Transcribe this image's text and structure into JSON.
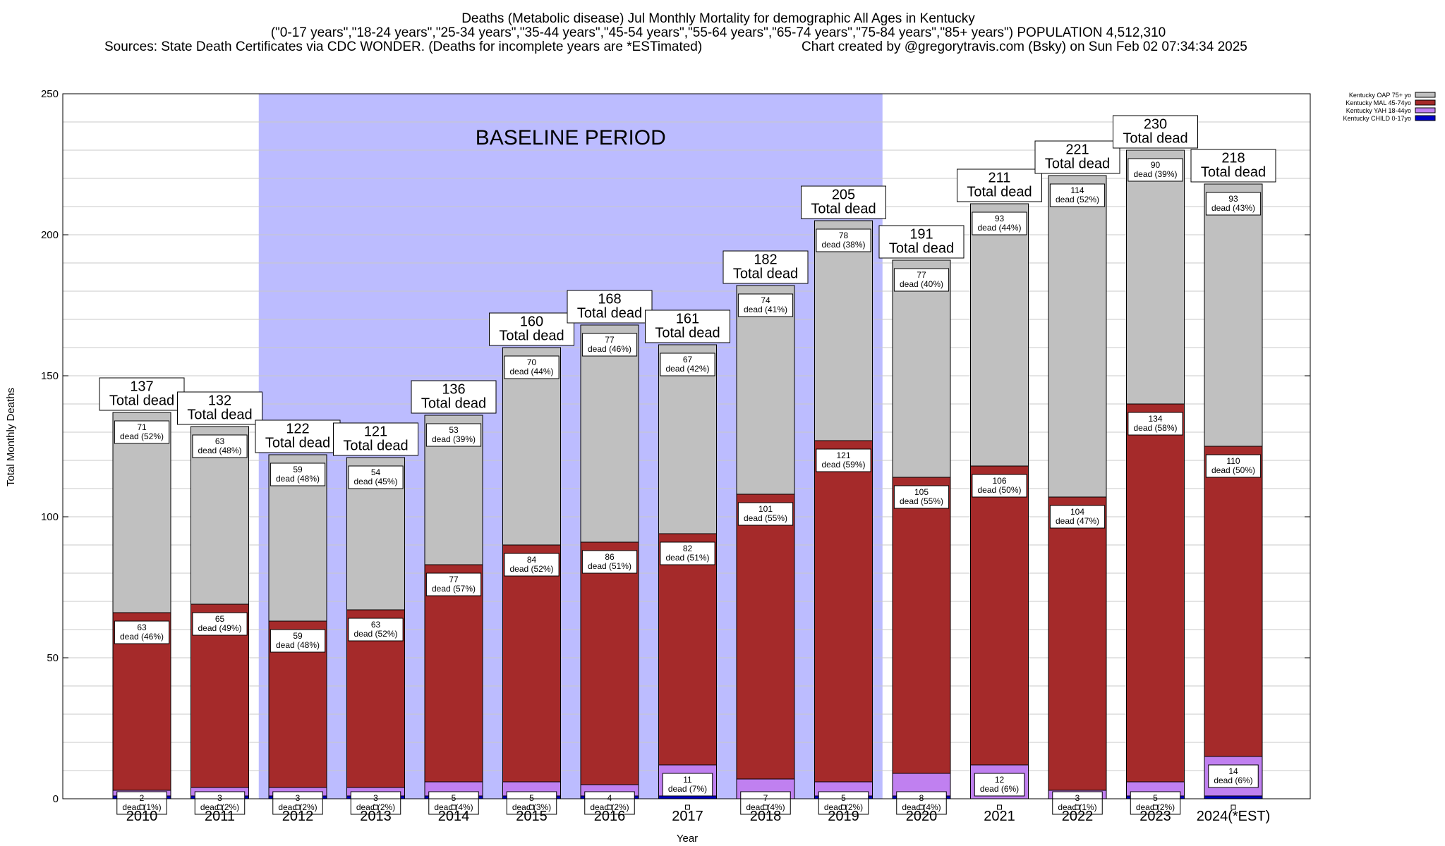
{
  "chart_data": {
    "type": "bar",
    "stacked": true,
    "title": "Deaths (Metabolic disease) Jul Monthly Mortality for demographic All Ages in Kentucky",
    "subtitle": "(\"0-17 years\",\"18-24 years\",\"25-34 years\",\"35-44 years\",\"45-54 years\",\"55-64 years\",\"65-74 years\",\"75-84 years\",\"85+ years\") POPULATION 4,512,310",
    "source_line": "Sources: State Death Certificates via CDC WONDER. (Deaths for incomplete years are *ESTimated)",
    "credit_line": "Chart created by @gregorytravis.com (Bsky) on Sun Feb 02 07:34:34 2025",
    "xlabel": "Year",
    "ylabel": "Total Monthly Deaths",
    "ylim": [
      0,
      250
    ],
    "yticks": [
      0,
      50,
      100,
      150,
      200,
      250
    ],
    "grid": true,
    "legend_position": "top-right",
    "categories": [
      "2010",
      "2011",
      "2012",
      "2013",
      "2014",
      "2015",
      "2016",
      "2017",
      "2018",
      "2019",
      "2020",
      "2021",
      "2022",
      "2023",
      "2024(*EST)"
    ],
    "series": [
      {
        "name": "Kentucky CHILD 0-17yo",
        "color": "#0000c8",
        "values": [
          1,
          1,
          1,
          1,
          1,
          1,
          1,
          1,
          0,
          1,
          1,
          0,
          0,
          1,
          1
        ]
      },
      {
        "name": "Kentucky YAH 18-44yo",
        "color": "#c080f0",
        "values": [
          2,
          3,
          3,
          3,
          5,
          5,
          4,
          11,
          7,
          5,
          8,
          12,
          3,
          5,
          14
        ]
      },
      {
        "name": "Kentucky MAL 45-74yo",
        "color": "#a52a2a",
        "values": [
          63,
          65,
          59,
          63,
          77,
          84,
          86,
          82,
          101,
          121,
          105,
          106,
          104,
          134,
          110
        ]
      },
      {
        "name": "Kentucky OAP 75+ yo",
        "color": "#c0c0c0",
        "values": [
          71,
          63,
          59,
          54,
          53,
          70,
          77,
          67,
          74,
          78,
          77,
          93,
          114,
          90,
          93
        ]
      }
    ],
    "totals": [
      137,
      132,
      122,
      121,
      136,
      160,
      168,
      161,
      182,
      205,
      191,
      211,
      221,
      230,
      218
    ],
    "segment_labels": {
      "yah": [
        "2\ndead (1%)",
        "3\ndead (2%)",
        "3\ndead (2%)",
        "3\ndead (2%)",
        "5\ndead (4%)",
        "5\ndead (3%)",
        "4\ndead (2%)",
        "11\ndead (7%)",
        "7\ndead (4%)",
        "5\ndead (2%)",
        "8\ndead (4%)",
        "12\ndead (6%)",
        "3\ndead (1%)",
        "5\ndead (2%)",
        "14\ndead (6%)"
      ],
      "mal": [
        "63\ndead (46%)",
        "65\ndead (49%)",
        "59\ndead (48%)",
        "63\ndead (52%)",
        "77\ndead (57%)",
        "84\ndead (52%)",
        "86\ndead (51%)",
        "82\ndead (51%)",
        "101\ndead (55%)",
        "121\ndead (59%)",
        "105\ndead (55%)",
        "106\ndead (50%)",
        "104\ndead (47%)",
        "134\ndead (58%)",
        "110\ndead (50%)"
      ],
      "oap": [
        "71\ndead (52%)",
        "63\ndead (48%)",
        "59\ndead (48%)",
        "54\ndead (45%)",
        "53\ndead (39%)",
        "70\ndead (44%)",
        "77\ndead (46%)",
        "67\ndead (42%)",
        "74\ndead (41%)",
        "78\ndead (38%)",
        "77\ndead (40%)",
        "93\ndead (44%)",
        "114\ndead (52%)",
        "90\ndead (39%)",
        "93\ndead (43%)"
      ]
    },
    "total_label_suffix": "Total dead",
    "baseline": {
      "label": "BASELINE PERIOD",
      "from": "2012",
      "to": "2019",
      "color": "#bcbcff"
    }
  }
}
